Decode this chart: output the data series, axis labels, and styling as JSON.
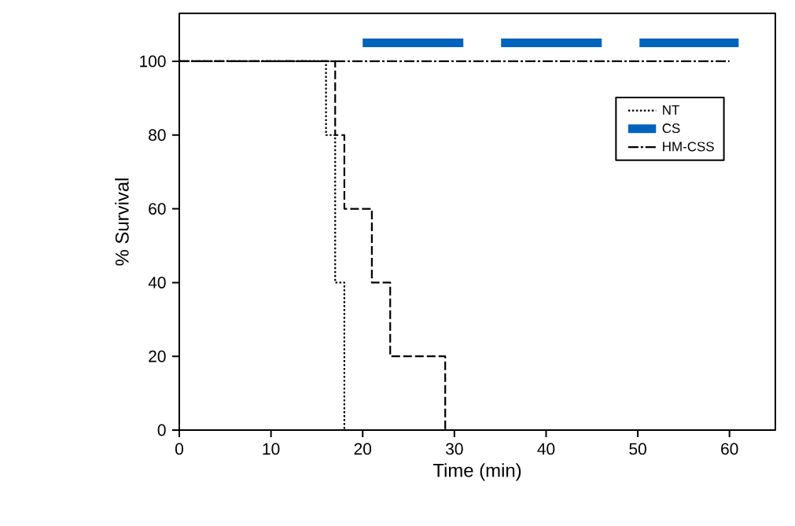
{
  "chart_data": {
    "type": "step",
    "xlabel": "Time (min)",
    "ylabel": "% Survival",
    "xlim": [
      0,
      65
    ],
    "ylim": [
      0,
      113
    ],
    "xticks": [
      0,
      10,
      20,
      30,
      40,
      50,
      60
    ],
    "yticks": [
      0,
      20,
      40,
      60,
      80,
      100
    ],
    "grid": false,
    "legend": "top right",
    "series": [
      {
        "name": "NT",
        "color": "#000000",
        "line_style": "dotted",
        "x": [
          0,
          16,
          17,
          18
        ],
        "values": [
          100,
          80,
          40,
          0
        ]
      },
      {
        "color": "#000000",
        "line_style": "dashed",
        "x": [
          0,
          17,
          18,
          21,
          23,
          29
        ],
        "values": [
          100,
          80,
          60,
          40,
          20,
          0
        ]
      },
      {
        "name": "CS",
        "type": "line",
        "color": "#0063be",
        "line_style": "dashed",
        "x": [
          20,
          61
        ],
        "values": [
          105,
          105
        ]
      },
      {
        "name": "HM-CSS",
        "color": "#000000",
        "line_style": "dashdot",
        "x": [
          0,
          60
        ],
        "values": [
          100,
          100
        ]
      }
    ]
  }
}
